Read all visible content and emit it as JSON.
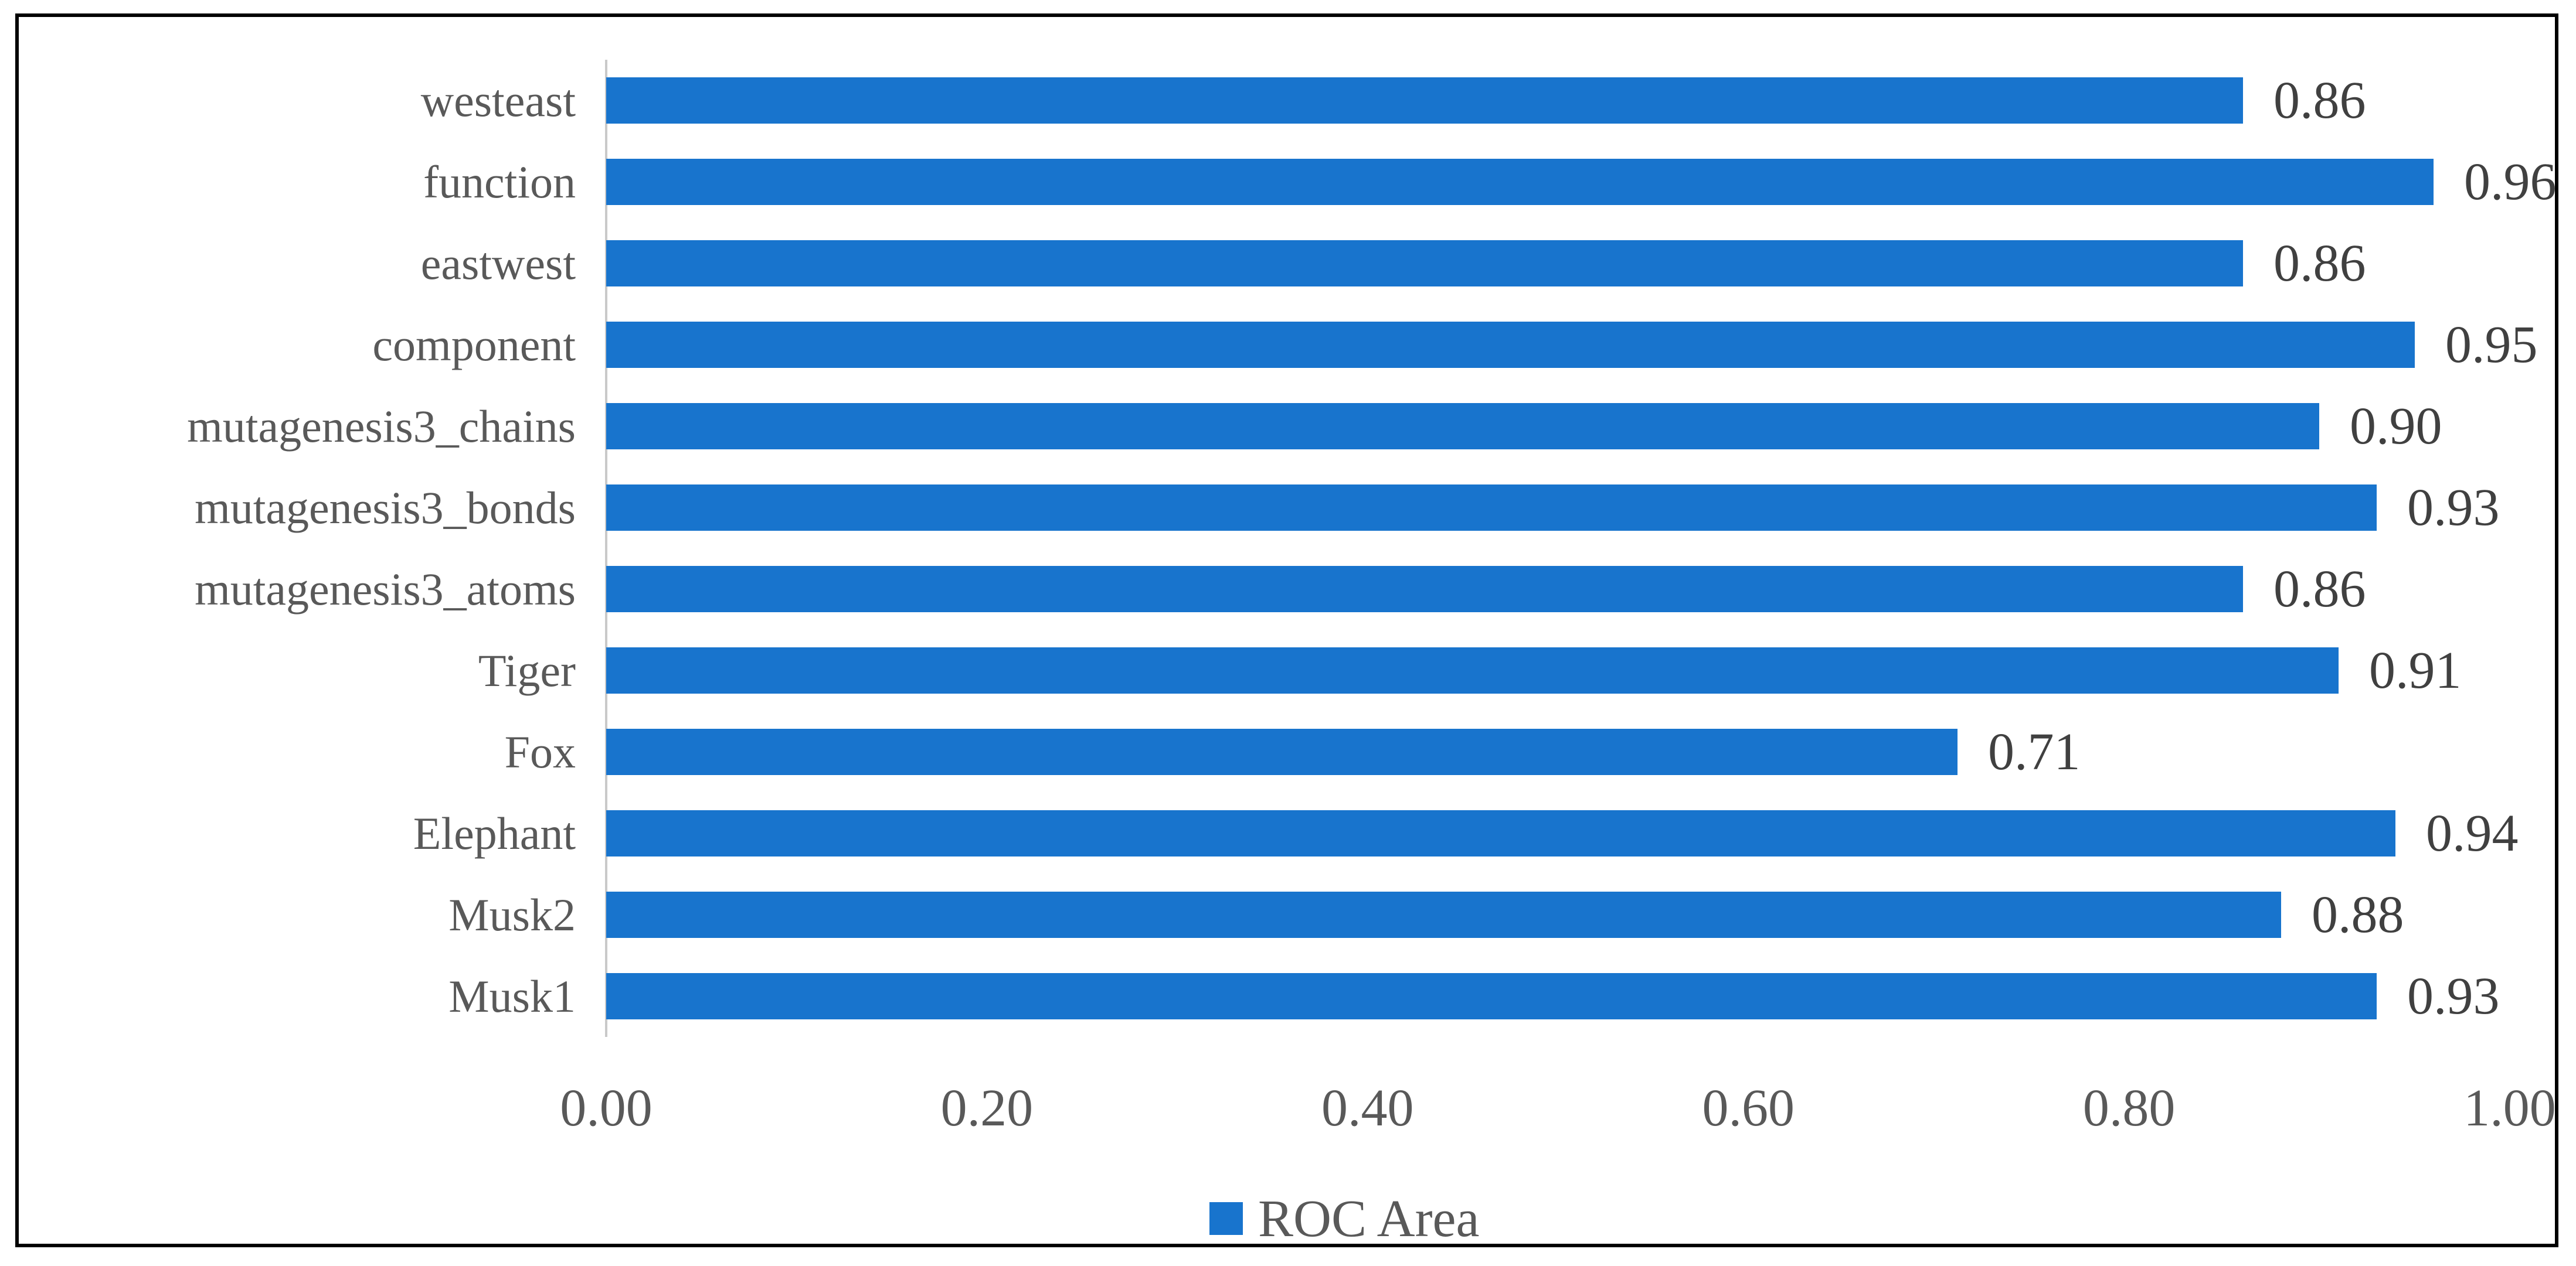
{
  "figure": {
    "kind": "bar-chart-figure",
    "background": "#FFFFFF"
  },
  "chart_data": {
    "type": "bar",
    "orientation": "horizontal",
    "title": "",
    "xlabel": "",
    "ylabel": "",
    "categories": [
      "westeast",
      "function",
      "eastwest",
      "component",
      "mutagenesis3_chains",
      "mutagenesis3_bonds",
      "mutagenesis3_atoms",
      "Tiger",
      "Fox",
      "Elephant",
      "Musk2",
      "Musk1"
    ],
    "values": [
      0.86,
      0.96,
      0.86,
      0.95,
      0.9,
      0.93,
      0.86,
      0.91,
      0.71,
      0.94,
      0.88,
      0.93
    ],
    "value_labels": [
      "0.86",
      "0.96",
      "0.86",
      "0.95",
      "0.90",
      "0.93",
      "0.86",
      "0.91",
      "0.71",
      "0.94",
      "0.88",
      "0.93"
    ],
    "x_ticks": {
      "labels": [
        "0.00",
        "0.20",
        "0.40",
        "0.60",
        "0.80",
        "1.00"
      ],
      "values": [
        0,
        0.2,
        0.4,
        0.6,
        0.8,
        1.0
      ]
    },
    "xlim": [
      0,
      1.0
    ],
    "grid": false,
    "legend": {
      "label": "ROC Area",
      "position": "bottom-center",
      "marker": "square"
    }
  },
  "colors": {
    "bar": "#1874CD",
    "text": "#595959",
    "value_text": "#404040",
    "axis_line": "#C9C9C9",
    "frame_border": "#000000",
    "background": "#FFFFFF"
  }
}
